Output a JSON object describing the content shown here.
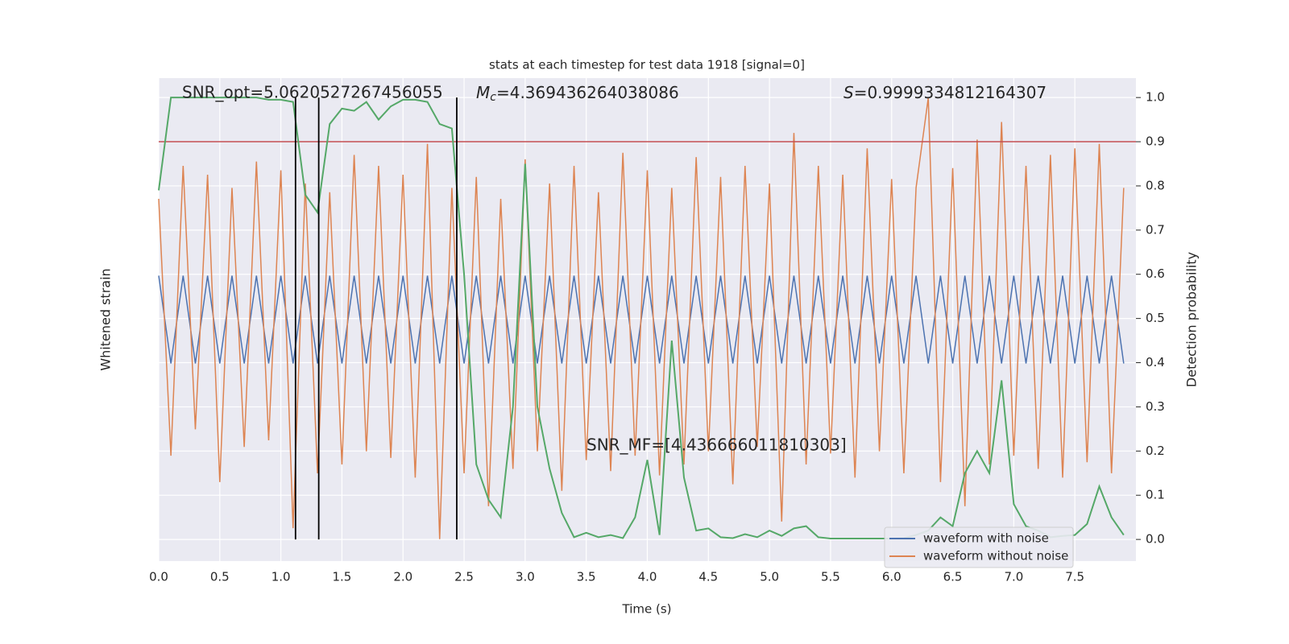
{
  "chart_data": {
    "type": "line",
    "title": "stats at each timestep for test data 1918 [signal=0]",
    "x_label": "Time (s)",
    "y_label": "Whitened strain",
    "y2_label": "Detection probability",
    "xlim": [
      0,
      8.0
    ],
    "xticks": [
      {
        "value": 0,
        "label": "0.0"
      },
      {
        "value": 0.5,
        "label": "0.5"
      },
      {
        "value": 1,
        "label": "1.0"
      },
      {
        "value": 1.5,
        "label": "1.5"
      },
      {
        "value": 2,
        "label": "2.0"
      },
      {
        "value": 2.5,
        "label": "2.5"
      },
      {
        "value": 3,
        "label": "3.0"
      },
      {
        "value": 3.5,
        "label": "3.5"
      },
      {
        "value": 4,
        "label": "4.0"
      },
      {
        "value": 4.5,
        "label": "4.5"
      },
      {
        "value": 5,
        "label": "5.0"
      },
      {
        "value": 5.5,
        "label": "5.5"
      },
      {
        "value": 6,
        "label": "6.0"
      },
      {
        "value": 6.5,
        "label": "6.5"
      },
      {
        "value": 7,
        "label": "7.0"
      },
      {
        "value": 7.5,
        "label": "7.5"
      }
    ],
    "ylim": [
      -1.1,
      1.1
    ],
    "y2lim": [
      -0.049,
      1.044
    ],
    "y2ticks": [
      {
        "value": 0,
        "label": "0.0"
      },
      {
        "value": 0.1,
        "label": "0.1"
      },
      {
        "value": 0.2,
        "label": "0.2"
      },
      {
        "value": 0.3,
        "label": "0.3"
      },
      {
        "value": 0.4,
        "label": "0.4"
      },
      {
        "value": 0.5,
        "label": "0.5"
      },
      {
        "value": 0.6,
        "label": "0.6"
      },
      {
        "value": 0.7,
        "label": "0.7"
      },
      {
        "value": 0.8,
        "label": "0.8"
      },
      {
        "value": 0.9,
        "label": "0.9"
      },
      {
        "value": 1,
        "label": "1.0"
      }
    ],
    "grid": true,
    "legend": "lower right",
    "x": [
      0,
      0.1,
      0.2,
      0.3,
      0.4,
      0.5,
      0.6,
      0.7,
      0.8,
      0.9,
      1,
      1.1,
      1.2,
      1.3,
      1.4,
      1.5,
      1.6,
      1.7,
      1.8,
      1.9,
      2,
      2.1,
      2.2,
      2.3,
      2.4,
      2.5,
      2.6,
      2.7,
      2.8,
      2.9,
      3,
      3.1,
      3.2,
      3.3,
      3.4,
      3.5,
      3.6,
      3.7,
      3.8,
      3.9,
      4,
      4.1,
      4.2,
      4.3,
      4.4,
      4.5,
      4.6,
      4.7,
      4.8,
      4.9,
      5,
      5.1,
      5.2,
      5.3,
      5.4,
      5.5,
      5.6,
      5.7,
      5.8,
      5.9,
      6,
      6.1,
      6.2,
      6.3,
      6.4,
      6.5,
      6.6,
      6.7,
      6.8,
      6.9,
      7,
      7.1,
      7.2,
      7.3,
      7.4,
      7.5,
      7.6,
      7.7,
      7.8,
      7.9
    ],
    "series": [
      {
        "name": "waveform with noise",
        "color": "#4c72b0",
        "values": [
          0.2,
          -0.2,
          0.2,
          -0.2,
          0.2,
          -0.2,
          0.2,
          -0.2,
          0.2,
          -0.2,
          0.2,
          -0.2,
          0.2,
          -0.2,
          0.2,
          -0.2,
          0.2,
          -0.2,
          0.2,
          -0.2,
          0.2,
          -0.2,
          0.2,
          -0.2,
          0.2,
          -0.2,
          0.2,
          -0.2,
          0.2,
          -0.2,
          0.2,
          -0.2,
          0.2,
          -0.2,
          0.2,
          -0.2,
          0.2,
          -0.2,
          0.2,
          -0.2,
          0.2,
          -0.2,
          0.2,
          -0.2,
          0.2,
          -0.2,
          0.2,
          -0.2,
          0.2,
          -0.2,
          0.2,
          -0.2,
          0.2,
          -0.2,
          0.2,
          -0.2,
          0.2,
          -0.2,
          0.2,
          -0.2,
          0.2,
          -0.2,
          0.2,
          -0.2,
          0.2,
          -0.2,
          0.2,
          -0.2,
          0.2,
          -0.2,
          0.2,
          -0.2,
          0.2,
          -0.2,
          0.2,
          -0.2,
          0.2,
          -0.2,
          0.2,
          -0.2
        ]
      },
      {
        "name": "waveform without noise",
        "color": "#dd8452",
        "values": [
          0.55,
          -0.62,
          0.7,
          -0.5,
          0.66,
          -0.74,
          0.6,
          -0.58,
          0.72,
          -0.55,
          0.68,
          -0.95,
          0.62,
          -0.7,
          0.58,
          -0.66,
          0.75,
          -0.6,
          0.7,
          -0.63,
          0.66,
          -0.72,
          0.8,
          -1.0,
          0.6,
          -0.7,
          0.65,
          -0.85,
          0.55,
          -0.68,
          0.73,
          -0.6,
          0.62,
          -0.78,
          0.7,
          -0.64,
          0.58,
          -0.69,
          0.76,
          -0.62,
          0.68,
          -0.71,
          0.6,
          -0.66,
          0.74,
          -0.6,
          0.65,
          -0.75,
          0.7,
          -0.58,
          0.62,
          -0.92,
          0.85,
          -0.66,
          0.7,
          -0.61,
          0.66,
          -0.72,
          0.78,
          -0.6,
          0.64,
          -0.7,
          0.6,
          1.01,
          -0.74,
          0.69,
          -0.85,
          0.82,
          -0.66,
          0.9,
          -0.62,
          0.7,
          -0.68,
          0.75,
          -0.72,
          0.78,
          -0.65,
          0.8,
          -0.7,
          0.6
        ]
      }
    ],
    "probability": {
      "color": "#55a868",
      "axis": "y2",
      "values": [
        0.79,
        1.0,
        1.0,
        1.0,
        1.0,
        1.0,
        1.0,
        1.0,
        1.0,
        0.995,
        0.995,
        0.99,
        0.78,
        0.74,
        0.94,
        0.975,
        0.97,
        0.99,
        0.95,
        0.98,
        0.995,
        0.995,
        0.99,
        0.94,
        0.93,
        0.6,
        0.17,
        0.09,
        0.05,
        0.3,
        0.85,
        0.3,
        0.16,
        0.06,
        0.005,
        0.015,
        0.005,
        0.01,
        0.003,
        0.05,
        0.18,
        0.01,
        0.45,
        0.14,
        0.02,
        0.025,
        0.005,
        0.003,
        0.012,
        0.005,
        0.02,
        0.008,
        0.025,
        0.03,
        0.005,
        0.002,
        0.002,
        0.002,
        0.002,
        0.002,
        0.002,
        0.003,
        0.01,
        0.02,
        0.05,
        0.03,
        0.15,
        0.2,
        0.15,
        0.36,
        0.08,
        0.03,
        0.02,
        0.005,
        0.008,
        0.01,
        0.035,
        0.12,
        0.05,
        0.01
      ]
    },
    "threshold": {
      "value": 0.9,
      "color": "#c44e52"
    },
    "vlines": {
      "x": [
        1.12,
        1.31,
        2.44
      ],
      "color": "#000000",
      "range": [
        0,
        1
      ]
    },
    "annotations": {
      "snr_opt": "SNR_opt=5.0620527267456055",
      "mc": {
        "symbol": "M",
        "subscript": "c",
        "text": "=4.369436264038086"
      },
      "s": {
        "symbol": "S",
        "text": "=0.9999334812164307"
      },
      "snr_mf": "SNR_MF=[4.436666011810303]"
    }
  }
}
